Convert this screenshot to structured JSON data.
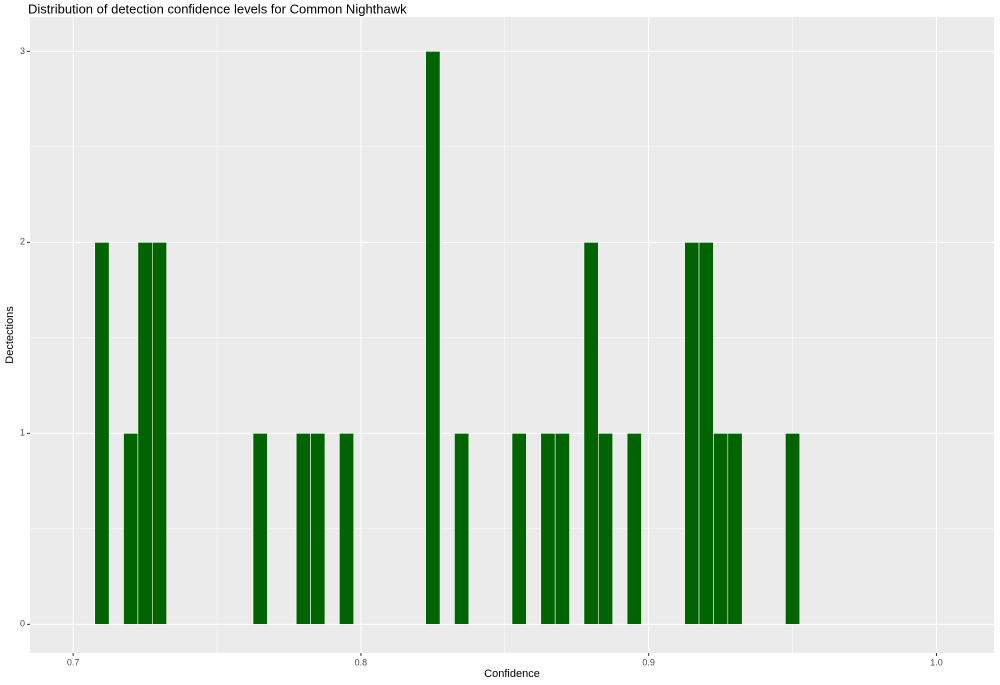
{
  "chart_data": {
    "type": "bar",
    "title": "Distribution of detection confidence levels for Common Nighthawk",
    "x_label": "Confidence",
    "y_label": "Dectections",
    "x": [
      0.71,
      0.72,
      0.725,
      0.73,
      0.765,
      0.78,
      0.785,
      0.795,
      0.825,
      0.835,
      0.855,
      0.865,
      0.87,
      0.88,
      0.885,
      0.895,
      0.915,
      0.92,
      0.925,
      0.93,
      0.95
    ],
    "values": [
      2,
      1,
      2,
      2,
      1,
      1,
      1,
      1,
      3,
      1,
      1,
      1,
      1,
      2,
      1,
      1,
      2,
      2,
      1,
      1,
      1
    ],
    "color": "#006400",
    "xlim": [
      0.685,
      1.02
    ],
    "ylim": [
      -0.15,
      3.18
    ],
    "xticks": [
      0.7,
      0.8,
      0.9,
      {
        "value": 1,
        "label": "1.0"
      }
    ],
    "yticks": [
      0,
      1,
      2,
      3
    ],
    "xminor": [
      0.75,
      0.85,
      0.95
    ],
    "yminor": [
      0.5,
      1.5,
      2.5
    ],
    "grid": true
  }
}
